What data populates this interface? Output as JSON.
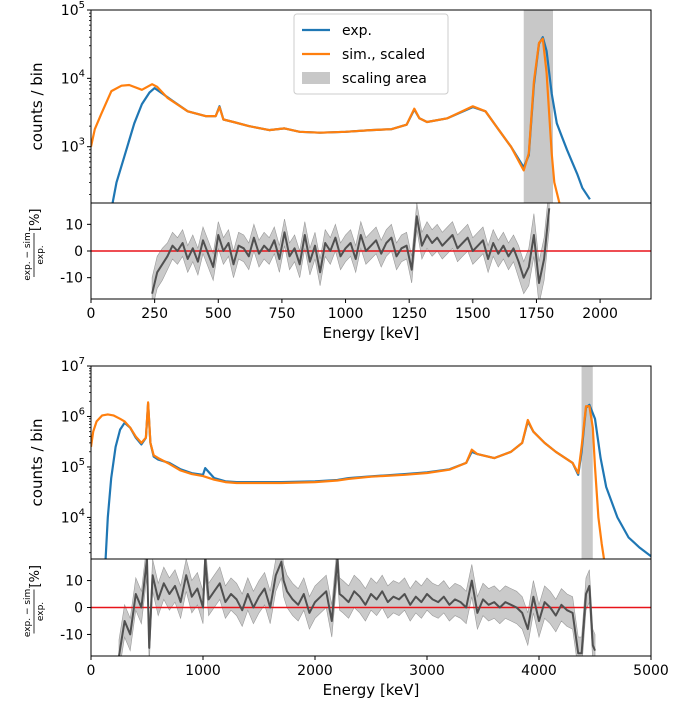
{
  "chart_data": [
    {
      "type": "line",
      "panel": "top-main",
      "ylabel": "counts / bin",
      "xlim": [
        0,
        2200
      ],
      "ylim": [
        150,
        100000
      ],
      "yscale": "log",
      "y_tick_labels": [
        "10",
        "10",
        "10"
      ],
      "y_tick_exponents": [
        "3",
        "4",
        "5"
      ],
      "legend": {
        "placement": "top-center",
        "entries": [
          "exp.",
          "sim., scaled",
          "scaling area"
        ]
      },
      "scaling_area": [
        1700,
        1815
      ],
      "colors": {
        "exp": "#1f77b4",
        "sim": "#ff7f0e",
        "band": "#c8c8c8"
      },
      "series": [
        {
          "name": "exp.",
          "x": [
            85,
            100,
            130,
            170,
            200,
            230,
            250,
            280,
            320,
            380,
            450,
            490,
            505,
            520,
            560,
            620,
            700,
            760,
            820,
            900,
            1000,
            1100,
            1180,
            1240,
            1270,
            1290,
            1320,
            1400,
            1500,
            1550,
            1600,
            1650,
            1700,
            1720,
            1740,
            1760,
            1775,
            1790,
            1810,
            1830,
            1850,
            1870,
            1890,
            1910,
            1930,
            1960
          ],
          "y": [
            150,
            300,
            700,
            2200,
            4200,
            6200,
            7200,
            6000,
            4700,
            3300,
            2800,
            2800,
            3900,
            2500,
            2300,
            2000,
            1750,
            1850,
            1650,
            1600,
            1650,
            1750,
            1800,
            2100,
            3500,
            2600,
            2300,
            2600,
            3800,
            3300,
            1800,
            1000,
            500,
            750,
            8000,
            32000,
            40000,
            25000,
            6000,
            2200,
            1400,
            900,
            600,
            400,
            250,
            170
          ]
        },
        {
          "name": "sim., scaled",
          "x": [
            0,
            15,
            40,
            80,
            120,
            150,
            200,
            240,
            260,
            300,
            380,
            450,
            490,
            505,
            520,
            560,
            620,
            700,
            760,
            820,
            900,
            1000,
            1100,
            1180,
            1240,
            1270,
            1290,
            1320,
            1400,
            1500,
            1550,
            1600,
            1650,
            1700,
            1720,
            1740,
            1760,
            1775,
            1790,
            1800,
            1810,
            1820,
            1840
          ],
          "y": [
            1000,
            1800,
            3000,
            6500,
            7800,
            8000,
            6800,
            8200,
            7500,
            5200,
            3300,
            2800,
            2800,
            3800,
            2500,
            2300,
            2000,
            1750,
            1850,
            1650,
            1600,
            1650,
            1750,
            1800,
            2100,
            3600,
            2600,
            2300,
            2600,
            3900,
            3300,
            1800,
            1000,
            450,
            800,
            9000,
            33000,
            38000,
            12000,
            3000,
            800,
            300,
            150
          ]
        }
      ]
    },
    {
      "type": "line",
      "panel": "top-residual",
      "ylabel": "exp. − sim. / exp. [%]",
      "xlabel": "Energy [keV]",
      "xlim": [
        0,
        2200
      ],
      "ylim": [
        -18,
        18
      ],
      "x_ticks": [
        0,
        250,
        500,
        750,
        1000,
        1250,
        1500,
        1750,
        2000
      ],
      "y_ticks": [
        -10,
        0,
        10
      ],
      "reference_line": 0,
      "series": [
        {
          "name": "residual",
          "x": [
            240,
            260,
            280,
            300,
            320,
            340,
            360,
            380,
            400,
            420,
            440,
            460,
            480,
            500,
            520,
            540,
            560,
            580,
            600,
            620,
            640,
            660,
            680,
            700,
            720,
            740,
            760,
            780,
            800,
            820,
            840,
            860,
            880,
            900,
            920,
            940,
            960,
            980,
            1000,
            1020,
            1040,
            1060,
            1080,
            1100,
            1120,
            1140,
            1160,
            1180,
            1200,
            1220,
            1240,
            1260,
            1280,
            1300,
            1320,
            1340,
            1360,
            1380,
            1400,
            1420,
            1440,
            1460,
            1480,
            1500,
            1520,
            1540,
            1560,
            1580,
            1600,
            1620,
            1640,
            1660,
            1680,
            1700,
            1720,
            1740,
            1760,
            1780,
            1800
          ],
          "y": [
            -16,
            -8,
            -5,
            -2,
            2,
            0,
            3,
            -3,
            1,
            -4,
            4,
            -1,
            -6,
            6,
            0,
            3,
            -5,
            2,
            1,
            -2,
            5,
            -1,
            2,
            0,
            4,
            -3,
            7,
            -2,
            1,
            -5,
            6,
            -4,
            2,
            -8,
            3,
            0,
            5,
            -2,
            1,
            3,
            -3,
            6,
            0,
            2,
            4,
            -1,
            3,
            5,
            -2,
            1,
            2,
            -7,
            13,
            2,
            6,
            3,
            5,
            2,
            4,
            6,
            1,
            3,
            5,
            0,
            2,
            4,
            -3,
            3,
            -1,
            2,
            -2,
            1,
            -4,
            -10,
            -6,
            6,
            -12,
            -3,
            16
          ],
          "band_halfwidth": [
            6,
            6,
            6,
            5,
            5,
            5,
            5,
            5,
            5,
            5,
            5,
            5,
            5,
            5,
            5,
            5,
            5,
            5,
            5,
            5,
            5,
            5,
            5,
            5,
            5,
            5,
            5,
            5,
            5,
            5,
            5,
            5,
            5,
            5,
            5,
            5,
            5,
            5,
            5,
            5,
            5,
            5,
            5,
            5,
            5,
            5,
            5,
            5,
            5,
            5,
            5,
            5,
            5,
            5,
            5,
            5,
            5,
            5,
            5,
            5,
            5,
            5,
            5,
            5,
            5,
            5,
            5,
            5,
            5,
            5,
            5,
            5,
            6,
            6,
            7,
            8,
            8,
            8,
            8
          ]
        }
      ]
    },
    {
      "type": "line",
      "panel": "bottom-main",
      "ylabel": "counts / bin",
      "xlim": [
        0,
        5000
      ],
      "ylim": [
        1500,
        10000000
      ],
      "yscale": "log",
      "y_tick_labels": [
        "10",
        "10",
        "10",
        "10"
      ],
      "y_tick_exponents": [
        "4",
        "5",
        "6",
        "7"
      ],
      "scaling_area": [
        4380,
        4480
      ],
      "colors": {
        "exp": "#1f77b4",
        "sim": "#ff7f0e",
        "band": "#c8c8c8"
      },
      "series": [
        {
          "name": "exp.",
          "x": [
            130,
            150,
            180,
            220,
            260,
            300,
            350,
            400,
            450,
            490,
            510,
            530,
            560,
            600,
            700,
            800,
            900,
            1000,
            1020,
            1100,
            1200,
            1300,
            1500,
            1700,
            2000,
            2200,
            2300,
            2500,
            2800,
            3000,
            3200,
            3350,
            3400,
            3450,
            3600,
            3750,
            3850,
            3900,
            3950,
            4050,
            4150,
            4300,
            4350,
            4380,
            4420,
            4450,
            4500,
            4550,
            4600,
            4700,
            4800,
            4900,
            5000
          ],
          "y": [
            1500,
            10000,
            60000,
            250000,
            550000,
            750000,
            600000,
            380000,
            280000,
            380000,
            1800000,
            300000,
            160000,
            140000,
            120000,
            90000,
            75000,
            70000,
            95000,
            60000,
            52000,
            50000,
            50000,
            50000,
            52000,
            55000,
            60000,
            65000,
            72000,
            78000,
            90000,
            120000,
            200000,
            180000,
            150000,
            200000,
            300000,
            800000,
            500000,
            300000,
            200000,
            120000,
            70000,
            200000,
            1500000,
            1700000,
            900000,
            150000,
            40000,
            10000,
            4000,
            2500,
            1700
          ]
        },
        {
          "name": "sim., scaled",
          "x": [
            0,
            20,
            50,
            100,
            150,
            200,
            260,
            300,
            350,
            400,
            450,
            490,
            510,
            530,
            560,
            600,
            700,
            800,
            900,
            1000,
            1100,
            1200,
            1300,
            1500,
            1700,
            2000,
            2200,
            2300,
            2500,
            2800,
            3000,
            3200,
            3350,
            3400,
            3450,
            3600,
            3750,
            3850,
            3900,
            3950,
            4050,
            4150,
            4300,
            4350,
            4380,
            4420,
            4450,
            4480,
            4500,
            4530,
            4560,
            4580
          ],
          "y": [
            250000,
            500000,
            800000,
            1050000,
            1100000,
            1050000,
            900000,
            800000,
            600000,
            400000,
            300000,
            380000,
            1900000,
            300000,
            170000,
            150000,
            115000,
            85000,
            72000,
            66000,
            56000,
            50000,
            48000,
            48000,
            48000,
            50000,
            54000,
            58000,
            64000,
            70000,
            76000,
            88000,
            120000,
            220000,
            180000,
            150000,
            200000,
            300000,
            850000,
            500000,
            300000,
            200000,
            120000,
            75000,
            250000,
            1600000,
            1600000,
            600000,
            100000,
            10000,
            3000,
            1500
          ]
        }
      ]
    },
    {
      "type": "line",
      "panel": "bottom-residual",
      "ylabel": "exp. − sim. / exp. [%]",
      "xlabel": "Energy [keV]",
      "xlim": [
        0,
        5000
      ],
      "ylim": [
        -18,
        18
      ],
      "x_ticks": [
        0,
        1000,
        2000,
        3000,
        4000,
        5000
      ],
      "y_ticks": [
        -10,
        0,
        10
      ],
      "reference_line": 0,
      "series": [
        {
          "name": "residual",
          "x": [
            250,
            300,
            350,
            400,
            450,
            500,
            520,
            550,
            600,
            650,
            700,
            750,
            800,
            850,
            900,
            950,
            1000,
            1020,
            1050,
            1100,
            1150,
            1200,
            1250,
            1300,
            1350,
            1400,
            1450,
            1500,
            1550,
            1600,
            1650,
            1700,
            1720,
            1750,
            1800,
            1850,
            1900,
            1950,
            2000,
            2050,
            2100,
            2150,
            2200,
            2220,
            2250,
            2300,
            2350,
            2400,
            2450,
            2500,
            2550,
            2600,
            2650,
            2700,
            2750,
            2800,
            2850,
            2900,
            2950,
            3000,
            3050,
            3100,
            3150,
            3200,
            3250,
            3300,
            3350,
            3400,
            3450,
            3500,
            3550,
            3600,
            3650,
            3700,
            3750,
            3800,
            3850,
            3900,
            3950,
            4000,
            4050,
            4100,
            4150,
            4200,
            4250,
            4300,
            4350,
            4380,
            4420,
            4450,
            4480,
            4500
          ],
          "y": [
            -18,
            -5,
            -10,
            5,
            0,
            18,
            -15,
            12,
            3,
            9,
            5,
            8,
            2,
            12,
            4,
            7,
            0,
            18,
            3,
            6,
            9,
            2,
            5,
            3,
            -1,
            5,
            0,
            4,
            7,
            0,
            12,
            17,
            10,
            6,
            3,
            1,
            5,
            -2,
            2,
            4,
            6,
            -5,
            18,
            5,
            4,
            2,
            6,
            4,
            1,
            5,
            3,
            6,
            2,
            4,
            3,
            5,
            1,
            4,
            2,
            5,
            3,
            2,
            4,
            1,
            3,
            2,
            0,
            10,
            -2,
            3,
            1,
            2,
            0,
            2,
            1,
            0,
            -2,
            -8,
            4,
            -5,
            2,
            0,
            -3,
            1,
            -1,
            -2,
            -17,
            -17,
            5,
            8,
            -14,
            -16
          ]
        }
      ]
    }
  ]
}
